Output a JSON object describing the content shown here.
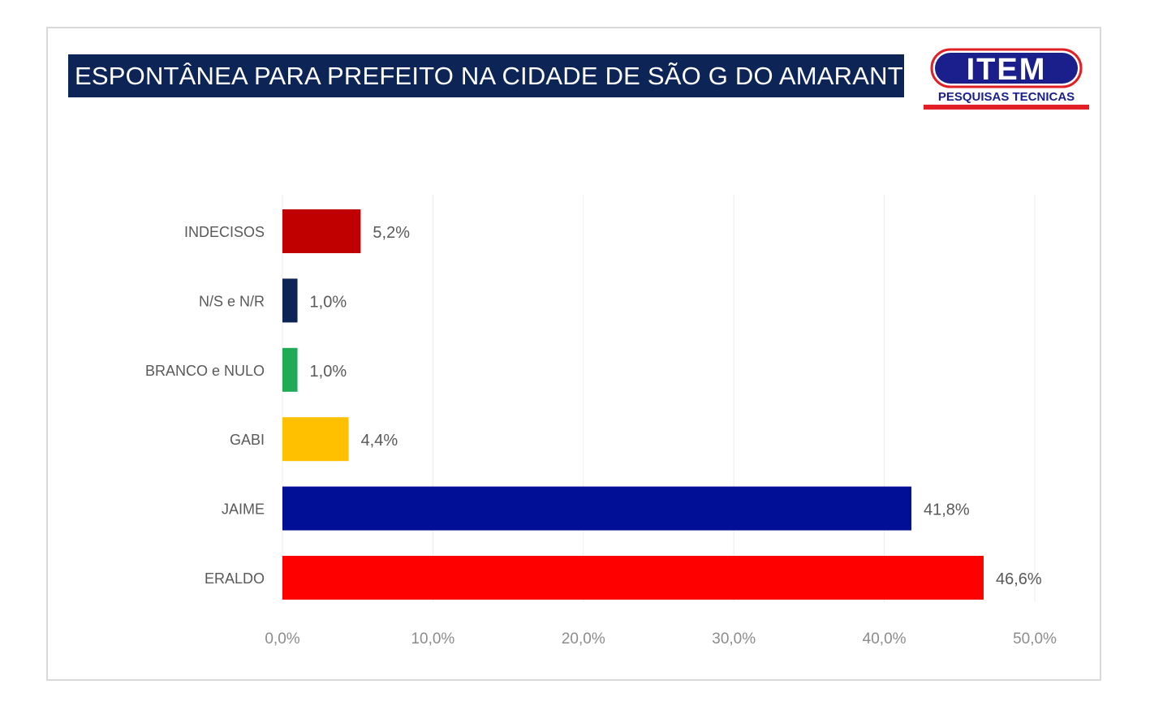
{
  "chart_data": {
    "type": "bar",
    "orientation": "horizontal",
    "title": "ESPONTÂNEA PARA PREFEITO NA CIDADE DE SÃO G DO AMARANTE",
    "categories": [
      "INDECISOS",
      "N/S e N/R",
      "BRANCO e NULO",
      "GABI",
      "JAIME",
      "ERALDO"
    ],
    "values": [
      5.2,
      1.0,
      1.0,
      4.4,
      41.8,
      46.6
    ],
    "value_labels": [
      "5,2%",
      "1,0%",
      "1,0%",
      "4,4%",
      "41,8%",
      "46,6%"
    ],
    "bar_colors": [
      "#c00000",
      "#0d2457",
      "#1faa55",
      "#ffc000",
      "#000f96",
      "#ff0000"
    ],
    "xlim": [
      0,
      50
    ],
    "x_ticks": [
      0,
      10,
      20,
      30,
      40,
      50
    ],
    "x_tick_labels": [
      "0,0%",
      "10,0%",
      "20,0%",
      "30,0%",
      "40,0%",
      "50,0%"
    ],
    "grid": true,
    "legend": "none"
  },
  "logo": {
    "main_text": "ITEM",
    "sub_text": "PESQUISAS TECNICAS",
    "colors": {
      "fill": "#1a1f8c",
      "outline": "#e21e26",
      "sub_text": "#1a1f8c",
      "underline": "#e21e26"
    }
  },
  "colors": {
    "title_background": "#0d2457",
    "title_text": "#ffffff",
    "category_label": "#595959",
    "value_label": "#595959",
    "tick_label": "#8c8c8c",
    "grid": "#ececec"
  }
}
